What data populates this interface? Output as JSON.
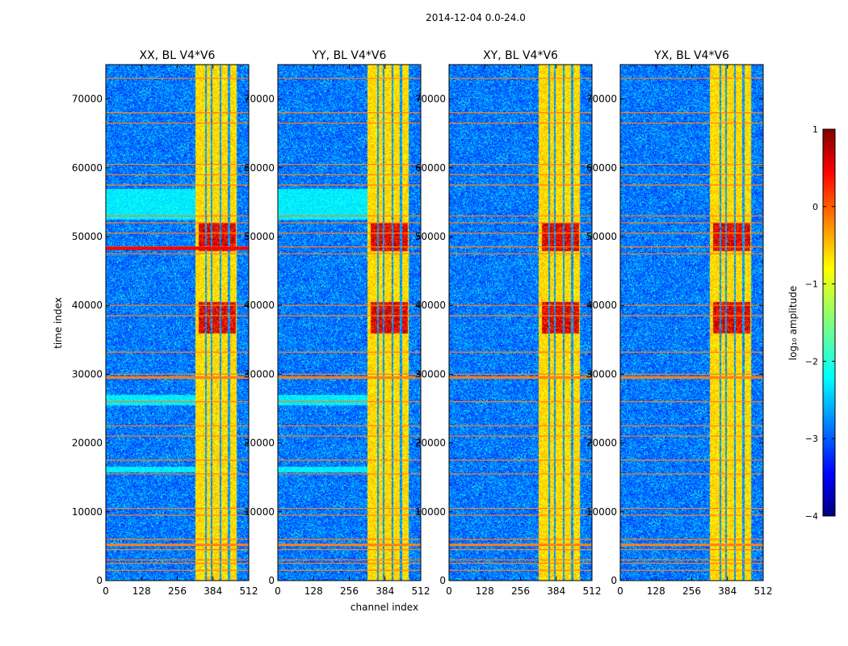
{
  "chart_data": {
    "type": "heatmap",
    "suptitle": "2014-12-04 0.0-24.0",
    "xlabel": "channel index",
    "ylabel": "time index",
    "xlim": [
      0,
      512
    ],
    "ylim": [
      0,
      75000
    ],
    "x_ticks": [
      "0",
      "128",
      "256",
      "384",
      "512"
    ],
    "x_tick_values": [
      0,
      128,
      256,
      384,
      512
    ],
    "y_ticks": [
      "0",
      "10000",
      "20000",
      "30000",
      "40000",
      "50000",
      "60000",
      "70000"
    ],
    "y_tick_values": [
      0,
      10000,
      20000,
      30000,
      40000,
      50000,
      60000,
      70000
    ],
    "panels": [
      {
        "title": "XX, BL V4*V6"
      },
      {
        "title": "YY, BL V4*V6"
      },
      {
        "title": "XY, BL V4*V6"
      },
      {
        "title": "YX, BL V4*V6"
      }
    ],
    "colorbar": {
      "label": "log₁₀ amplitude",
      "range": [
        -4,
        1
      ],
      "ticks": [
        "1",
        "0",
        "−1",
        "−2",
        "−3",
        "−4"
      ],
      "tick_values": [
        1,
        0,
        -1,
        -2,
        -3,
        -4
      ],
      "colormap": "jet"
    },
    "features": {
      "band_channels": [
        [
          320,
          470
        ]
      ],
      "gap_channels": [
        358,
        378,
        410,
        440,
        470
      ],
      "flag_rows": [
        1500,
        2500,
        3000,
        4500,
        5200,
        6000,
        9500,
        10500,
        15500,
        17500,
        21000,
        22500,
        26000,
        29500,
        30000,
        33200,
        38500,
        40000,
        47500,
        48500,
        50500,
        52000,
        53000,
        57500,
        59000,
        60500,
        66500,
        68000,
        73000
      ],
      "strong_rows_xx": [
        48300
      ],
      "hot_bands": [
        [
          36000,
          40500
        ],
        [
          48000,
          52000
        ]
      ]
    }
  }
}
